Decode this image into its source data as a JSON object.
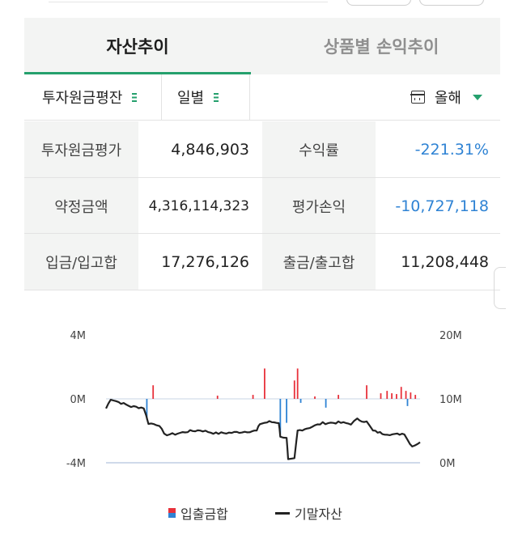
{
  "tabs": [
    {
      "label": "자산추이",
      "active": true
    },
    {
      "label": "상품별 손익추이",
      "active": false
    }
  ],
  "filters": {
    "account_type": "투자원금평잔",
    "period": "일별",
    "range": "올해"
  },
  "summary": {
    "invest_principal_label": "투자원금평가",
    "invest_principal_value": "4,846,903",
    "return_rate_label": "수익률",
    "return_rate_value": "-221.31%",
    "contract_amount_label": "약정금액",
    "contract_amount_value": "4,316,114,323",
    "eval_pl_label": "평가손익",
    "eval_pl_value": "-10,727,118",
    "deposit_label": "입금/입고합",
    "deposit_value": "17,276,126",
    "withdraw_label": "출금/출고합",
    "withdraw_value": "11,208,448"
  },
  "colors": {
    "accent": "#25a06d",
    "negative": "#2f83d4",
    "inflow": "#e8313b",
    "outflow": "#2f83d4"
  },
  "chart_data": {
    "type": "bar+line",
    "left_axis": {
      "ticks": [
        "4M",
        "0M",
        "-4M"
      ],
      "range": [
        -4,
        4
      ],
      "unit": "M"
    },
    "right_axis": {
      "ticks": [
        "20M",
        "10M",
        "0M"
      ],
      "range": [
        0,
        20
      ],
      "unit": "M"
    },
    "legend": [
      "입출금합",
      "기말자산"
    ],
    "legend_placement": "bottom",
    "bars_left_axis_M": [
      {
        "t": 0.13,
        "v": -1.3
      },
      {
        "t": 0.15,
        "v": 0.85
      },
      {
        "t": 0.355,
        "v": 0.2
      },
      {
        "t": 0.468,
        "v": 0.25
      },
      {
        "t": 0.505,
        "v": 1.9
      },
      {
        "t": 0.555,
        "v": -2.2
      },
      {
        "t": 0.575,
        "v": -1.5
      },
      {
        "t": 0.6,
        "v": 1.15
      },
      {
        "t": 0.61,
        "v": 1.9
      },
      {
        "t": 0.62,
        "v": -0.25
      },
      {
        "t": 0.665,
        "v": 0.15
      },
      {
        "t": 0.7,
        "v": -0.55
      },
      {
        "t": 0.74,
        "v": 0.25
      },
      {
        "t": 0.83,
        "v": 0.85
      },
      {
        "t": 0.875,
        "v": 0.35
      },
      {
        "t": 0.895,
        "v": 0.5
      },
      {
        "t": 0.91,
        "v": 0.35
      },
      {
        "t": 0.925,
        "v": 0.3
      },
      {
        "t": 0.94,
        "v": 0.75
      },
      {
        "t": 0.955,
        "v": 0.5
      },
      {
        "t": 0.96,
        "v": -0.45
      },
      {
        "t": 0.97,
        "v": 0.4
      },
      {
        "t": 0.985,
        "v": 0.25
      }
    ],
    "line_right_axis_M": [
      {
        "t": 0.0,
        "v": 8.5
      },
      {
        "t": 0.015,
        "v": 10.0
      },
      {
        "t": 0.04,
        "v": 9.5
      },
      {
        "t": 0.08,
        "v": 8.8
      },
      {
        "t": 0.12,
        "v": 8.6
      },
      {
        "t": 0.135,
        "v": 6.2
      },
      {
        "t": 0.17,
        "v": 5.9
      },
      {
        "t": 0.185,
        "v": 4.4
      },
      {
        "t": 0.22,
        "v": 4.5
      },
      {
        "t": 0.26,
        "v": 4.9
      },
      {
        "t": 0.3,
        "v": 5.1
      },
      {
        "t": 0.35,
        "v": 4.6
      },
      {
        "t": 0.4,
        "v": 4.7
      },
      {
        "t": 0.45,
        "v": 4.9
      },
      {
        "t": 0.48,
        "v": 5.0
      },
      {
        "t": 0.49,
        "v": 6.1
      },
      {
        "t": 0.52,
        "v": 6.4
      },
      {
        "t": 0.55,
        "v": 6.3
      },
      {
        "t": 0.555,
        "v": 4.2
      },
      {
        "t": 0.575,
        "v": 3.8
      },
      {
        "t": 0.58,
        "v": 0.4
      },
      {
        "t": 0.6,
        "v": 0.6
      },
      {
        "t": 0.61,
        "v": 5.0
      },
      {
        "t": 0.64,
        "v": 5.4
      },
      {
        "t": 0.69,
        "v": 6.2
      },
      {
        "t": 0.74,
        "v": 6.3
      },
      {
        "t": 0.78,
        "v": 6.1
      },
      {
        "t": 0.8,
        "v": 6.8
      },
      {
        "t": 0.83,
        "v": 6.4
      },
      {
        "t": 0.85,
        "v": 5.0
      },
      {
        "t": 0.88,
        "v": 4.6
      },
      {
        "t": 0.92,
        "v": 4.4
      },
      {
        "t": 0.95,
        "v": 4.6
      },
      {
        "t": 0.96,
        "v": 3.6
      },
      {
        "t": 0.975,
        "v": 2.6
      },
      {
        "t": 1.0,
        "v": 3.2
      }
    ]
  }
}
